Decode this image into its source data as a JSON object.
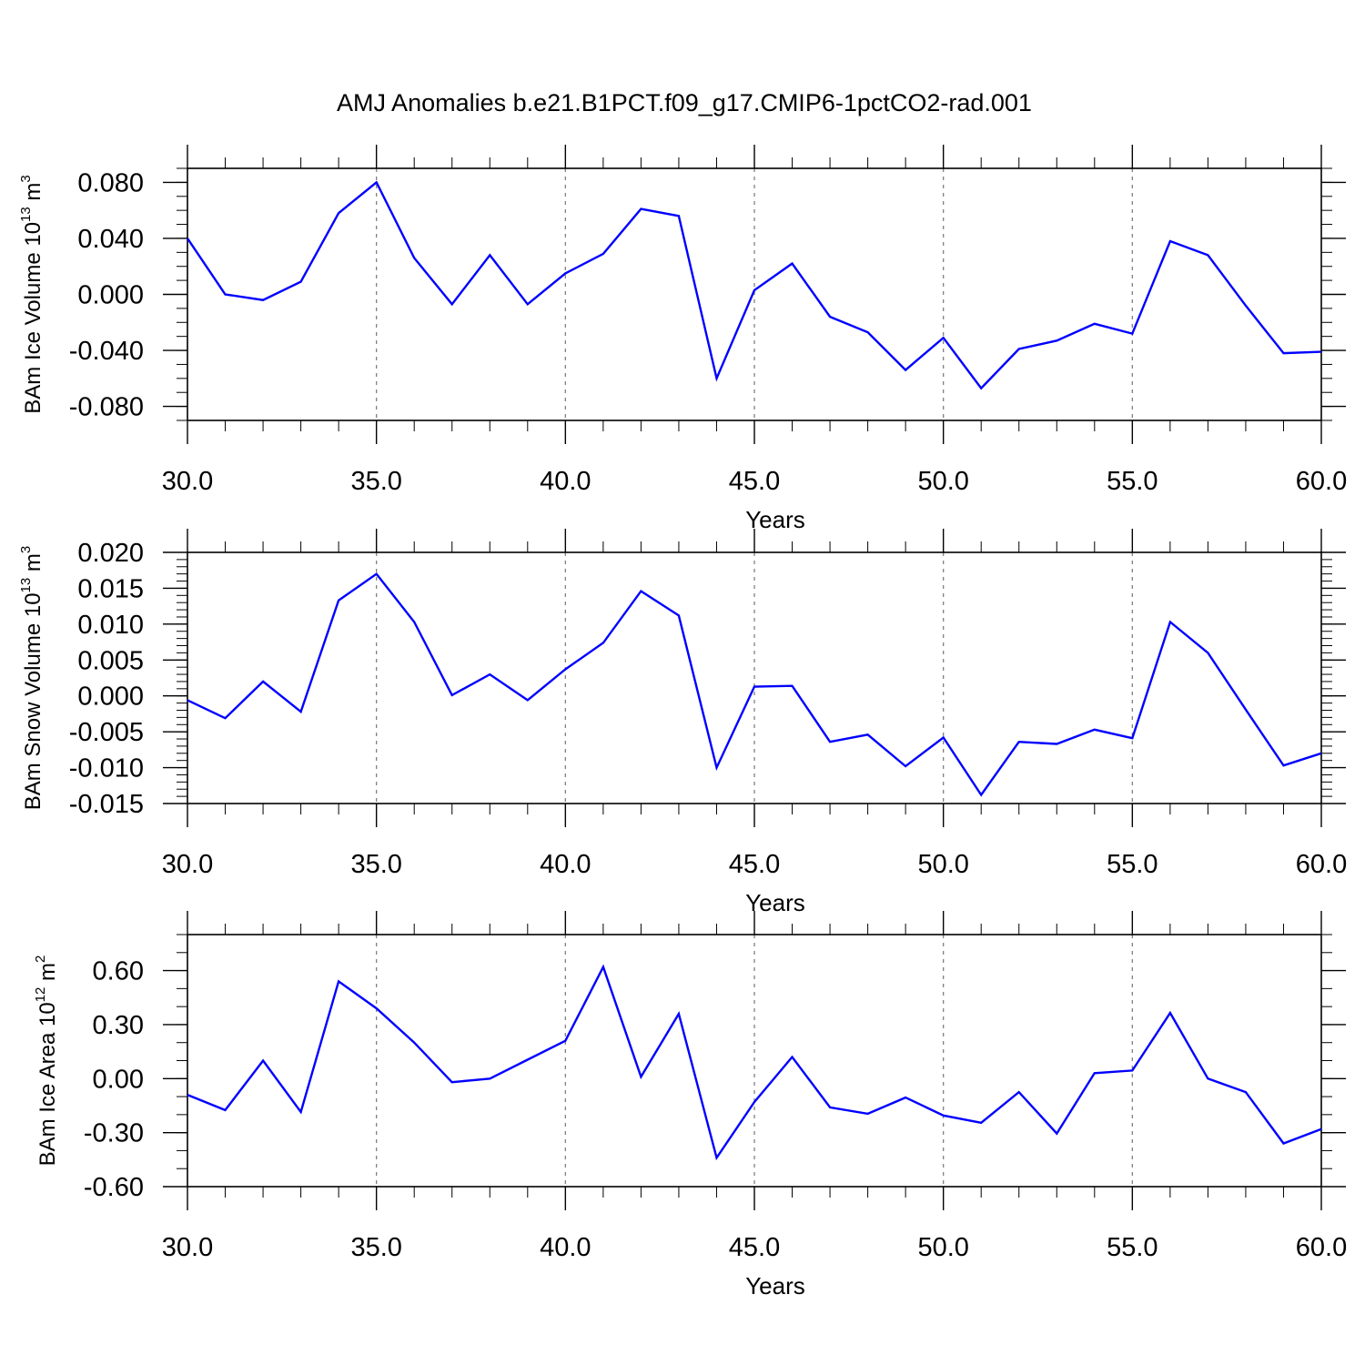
{
  "figure": {
    "title": "AMJ Anomalies b.e21.B1PCT.f09_g17.CMIP6-1pctCO2-rad.001",
    "line_color": "#0000ff",
    "grid_color": "#808080"
  },
  "chart_data": [
    {
      "type": "line",
      "xlabel": "Years",
      "ylabel": {
        "main": "BAm Ice Volume 10",
        "exp": "13",
        "unit": " m",
        "unit_exp": "3"
      },
      "xlim": [
        30,
        60
      ],
      "ylim": [
        -0.09,
        0.09
      ],
      "x_ticks": [
        30,
        35,
        40,
        45,
        50,
        55,
        60
      ],
      "x_tick_labels": [
        "30.0",
        "35.0",
        "40.0",
        "45.0",
        "50.0",
        "55.0",
        "60.0"
      ],
      "y_ticks": [
        0.08,
        0.04,
        0.0,
        -0.04,
        -0.08
      ],
      "y_tick_labels": [
        "0.080",
        "0.040",
        "0.000",
        "-0.040",
        "-0.080"
      ],
      "y_minor_step": 0.01,
      "vertical_grid": [
        35,
        40,
        45,
        50,
        55
      ],
      "x": [
        30,
        31,
        32,
        33,
        34,
        35,
        36,
        37,
        38,
        39,
        40,
        41,
        42,
        43,
        44,
        45,
        46,
        47,
        48,
        49,
        50,
        51,
        52,
        53,
        54,
        55,
        56,
        57,
        58,
        59,
        60
      ],
      "values": [
        0.04,
        0.0,
        -0.004,
        0.009,
        0.058,
        0.08,
        0.026,
        -0.007,
        0.028,
        -0.007,
        0.015,
        0.029,
        0.061,
        0.056,
        -0.06,
        0.003,
        0.022,
        -0.016,
        -0.027,
        -0.054,
        -0.031,
        -0.067,
        -0.039,
        -0.033,
        -0.021,
        -0.028,
        0.038,
        0.028,
        -0.008,
        -0.042,
        -0.041
      ]
    },
    {
      "type": "line",
      "xlabel": "Years",
      "ylabel": {
        "main": "BAm Snow Volume 10",
        "exp": "13",
        "unit": " m",
        "unit_exp": "3"
      },
      "xlim": [
        30,
        60
      ],
      "ylim": [
        -0.015,
        0.02
      ],
      "x_ticks": [
        30,
        35,
        40,
        45,
        50,
        55,
        60
      ],
      "x_tick_labels": [
        "30.0",
        "35.0",
        "40.0",
        "45.0",
        "50.0",
        "55.0",
        "60.0"
      ],
      "y_ticks": [
        0.02,
        0.015,
        0.01,
        0.005,
        0.0,
        -0.005,
        -0.01,
        -0.015
      ],
      "y_tick_labels": [
        "0.020",
        "0.015",
        "0.010",
        "0.005",
        "0.000",
        "-0.005",
        "-0.010",
        "-0.015"
      ],
      "y_minor_step": 0.001,
      "vertical_grid": [
        35,
        40,
        45,
        50,
        55
      ],
      "x": [
        30,
        31,
        32,
        33,
        34,
        35,
        36,
        37,
        38,
        39,
        40,
        41,
        42,
        43,
        44,
        45,
        46,
        47,
        48,
        49,
        50,
        51,
        52,
        53,
        54,
        55,
        56,
        57,
        58,
        59,
        60
      ],
      "values": [
        -0.0006,
        -0.0031,
        0.002,
        -0.0022,
        0.0133,
        0.017,
        0.0103,
        0.0001,
        0.003,
        -0.0006,
        0.0037,
        0.0074,
        0.0146,
        0.0112,
        -0.01,
        0.0013,
        0.0014,
        -0.0064,
        -0.0054,
        -0.0098,
        -0.0058,
        -0.0138,
        -0.0064,
        -0.0067,
        -0.0047,
        -0.0059,
        0.0103,
        0.006,
        -0.0019,
        -0.0097,
        -0.008
      ]
    },
    {
      "type": "line",
      "xlabel": "Years",
      "ylabel": {
        "main": "BAm Ice Area 10",
        "exp": "12",
        "unit": " m",
        "unit_exp": "2"
      },
      "xlim": [
        30,
        60
      ],
      "ylim": [
        -0.6,
        0.8
      ],
      "x_ticks": [
        30,
        35,
        40,
        45,
        50,
        55,
        60
      ],
      "x_tick_labels": [
        "30.0",
        "35.0",
        "40.0",
        "45.0",
        "50.0",
        "55.0",
        "60.0"
      ],
      "y_ticks": [
        0.6,
        0.3,
        0.0,
        -0.3,
        -0.6
      ],
      "y_tick_labels": [
        "0.60",
        "0.30",
        "0.00",
        "-0.30",
        "-0.60"
      ],
      "y_minor_step": 0.1,
      "vertical_grid": [
        35,
        40,
        45,
        50,
        55
      ],
      "x": [
        30,
        31,
        32,
        33,
        34,
        35,
        36,
        37,
        38,
        39,
        40,
        41,
        42,
        43,
        44,
        45,
        46,
        47,
        48,
        49,
        50,
        51,
        52,
        53,
        54,
        55,
        56,
        57,
        58,
        59,
        60
      ],
      "values": [
        -0.09,
        -0.175,
        0.1,
        -0.185,
        0.54,
        0.39,
        0.2,
        -0.02,
        0.0,
        0.105,
        0.21,
        0.62,
        0.01,
        0.36,
        -0.44,
        -0.13,
        0.12,
        -0.16,
        -0.195,
        -0.105,
        -0.205,
        -0.245,
        -0.075,
        -0.305,
        0.03,
        0.045,
        0.365,
        0.0,
        -0.075,
        -0.36,
        -0.28
      ]
    }
  ]
}
